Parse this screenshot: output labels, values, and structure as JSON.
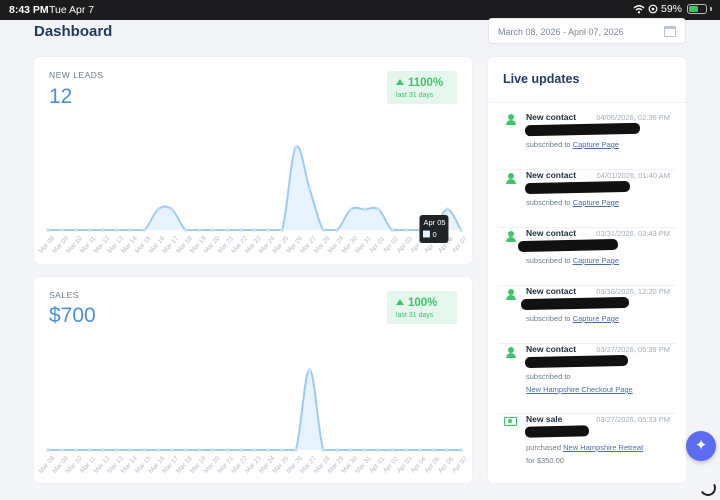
{
  "statusbar": {
    "time": "8:43 PM",
    "date": "Tue Apr 7",
    "battery": "59%",
    "battery_level": 0.59
  },
  "header": {
    "title": "Dashboard",
    "date_range": "March 08, 2026 - April 07, 2026"
  },
  "new_leads": {
    "label": "NEW LEADS",
    "value": "12",
    "change": "1100%",
    "change_sub": "last 31 days",
    "tooltip": {
      "date": "Apr 05",
      "value": "0"
    }
  },
  "sales": {
    "label": "SALES",
    "value": "$700",
    "change": "100%",
    "change_sub": "last 31 days"
  },
  "chart_data": [
    {
      "type": "area",
      "title": "NEW LEADS",
      "x": [
        "Mar 08",
        "Mar 09",
        "Mar 10",
        "Mar 11",
        "Mar 12",
        "Mar 13",
        "Mar 14",
        "Mar 15",
        "Mar 16",
        "Mar 17",
        "Mar 18",
        "Mar 19",
        "Mar 20",
        "Mar 21",
        "Mar 22",
        "Mar 23",
        "Mar 24",
        "Mar 25",
        "Mar 26",
        "Mar 27",
        "Mar 28",
        "Mar 29",
        "Mar 30",
        "Mar 31",
        "Apr 01",
        "Apr 02",
        "Apr 03",
        "Apr 04",
        "Apr 05",
        "Apr 06",
        "Apr 07"
      ],
      "values": [
        0,
        0,
        0,
        0,
        0,
        0,
        0,
        0,
        1,
        1,
        0,
        0,
        0,
        0,
        0,
        0,
        0,
        0,
        4,
        2,
        0,
        0,
        1,
        1,
        1,
        0,
        0,
        0,
        0,
        1,
        0
      ],
      "ylim": [
        0,
        4.6
      ]
    },
    {
      "type": "area",
      "title": "SALES",
      "x": [
        "Mar 08",
        "Mar 09",
        "Mar 10",
        "Mar 11",
        "Mar 12",
        "Mar 13",
        "Mar 14",
        "Mar 15",
        "Mar 16",
        "Mar 17",
        "Mar 18",
        "Mar 19",
        "Mar 20",
        "Mar 21",
        "Mar 22",
        "Mar 23",
        "Mar 24",
        "Mar 25",
        "Mar 26",
        "Mar 27",
        "Mar 28",
        "Mar 29",
        "Mar 30",
        "Mar 31",
        "Apr 01",
        "Apr 02",
        "Apr 03",
        "Apr 04",
        "Apr 05",
        "Apr 06",
        "Apr 07"
      ],
      "values": [
        0,
        0,
        0,
        0,
        0,
        0,
        0,
        0,
        0,
        0,
        0,
        0,
        0,
        0,
        0,
        0,
        0,
        0,
        0,
        700,
        0,
        0,
        0,
        0,
        0,
        0,
        0,
        0,
        0,
        0,
        0
      ],
      "ylim": [
        0,
        830
      ]
    }
  ],
  "updates": {
    "title": "Live updates",
    "items": [
      {
        "icon": "person-icon",
        "title": "New contact",
        "time": "04/06/2026, 02:36 PM",
        "action": "subscribed to",
        "link": "Capture Page",
        "extra": ""
      },
      {
        "icon": "person-icon",
        "title": "New contact",
        "time": "04/01/2026, 01:40 AM",
        "action": "subscribed to",
        "link": "Capture Page",
        "extra": ""
      },
      {
        "icon": "person-icon",
        "title": "New contact",
        "time": "03/31/2026, 03:43 PM",
        "action": "subscribed to",
        "link": "Capture Page",
        "extra": ""
      },
      {
        "icon": "person-icon",
        "title": "New contact",
        "time": "03/30/2026, 12:20 PM",
        "action": "subscribed to",
        "link": "Capture Page",
        "extra": ""
      },
      {
        "icon": "person-icon",
        "title": "New contact",
        "time": "03/27/2026, 05:39 PM",
        "action": "subscribed to",
        "link": "New Hampshire Checkout Page",
        "extra": ""
      },
      {
        "icon": "money-icon",
        "title": "New sale",
        "time": "03/27/2026, 05:33 PM",
        "action": "purchased",
        "link": "New Hampshire Retreat",
        "extra": "for $350.00"
      }
    ]
  }
}
